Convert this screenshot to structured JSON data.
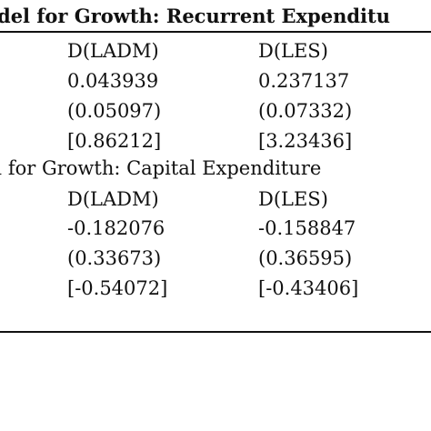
{
  "sections": [
    {
      "title": "odel for Growth: Recurrent Expenditu",
      "columns": [
        "D(LADM)",
        "D(LES)"
      ],
      "rows": [
        [
          "0.043939",
          "0.237137"
        ],
        [
          "(0.05097)",
          "(0.07332)"
        ],
        [
          "[0.86212]",
          "[3.23436]"
        ]
      ]
    },
    {
      "title": "el for Growth: Capital Expenditure",
      "columns": [
        "D(LADM)",
        "D(LES)"
      ],
      "rows": [
        [
          "-0.182076",
          "-0.158847"
        ],
        [
          "(0.33673)",
          "(0.36595)"
        ],
        [
          "[-0.54072]",
          "[-0.43406]"
        ]
      ]
    }
  ]
}
